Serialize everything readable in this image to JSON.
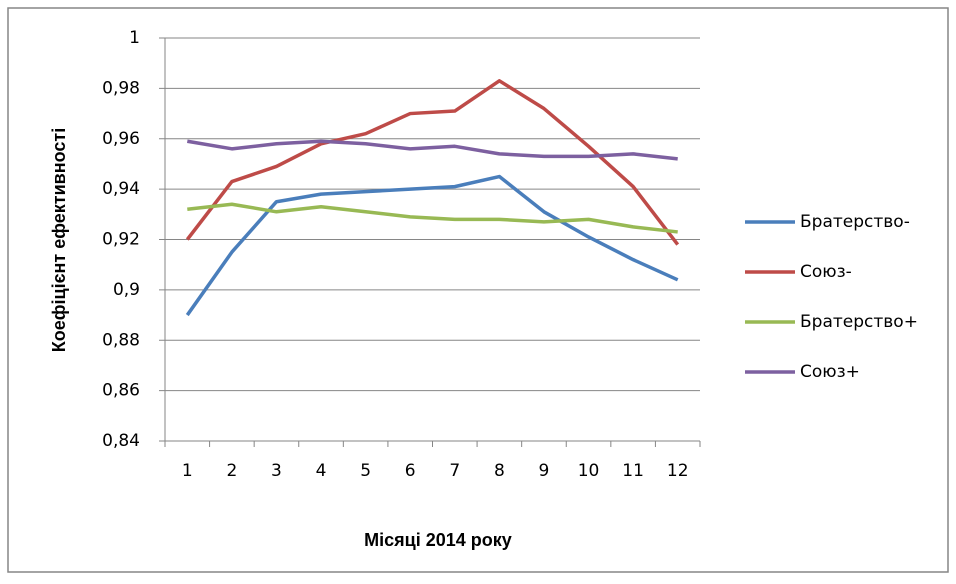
{
  "chart_data": {
    "type": "line",
    "x_label": "Місяці 2014 року",
    "y_label": "Коефіцієнт  ефективності",
    "categories": [
      "1",
      "2",
      "3",
      "4",
      "5",
      "6",
      "7",
      "8",
      "9",
      "10",
      "11",
      "12"
    ],
    "series": [
      {
        "name": "Братерство-",
        "color": "#4a7ebb",
        "values": [
          0.89,
          0.915,
          0.935,
          0.938,
          0.939,
          0.94,
          0.941,
          0.945,
          0.931,
          0.921,
          0.912,
          0.904
        ]
      },
      {
        "name": "Союз-",
        "color": "#be4b48",
        "values": [
          0.92,
          0.943,
          0.949,
          0.958,
          0.962,
          0.97,
          0.971,
          0.983,
          0.972,
          0.957,
          0.941,
          0.918
        ]
      },
      {
        "name": "Братерство+",
        "color": "#98b954",
        "values": [
          0.932,
          0.934,
          0.931,
          0.933,
          0.931,
          0.929,
          0.928,
          0.928,
          0.927,
          0.928,
          0.925,
          0.923
        ]
      },
      {
        "name": "Союз+",
        "color": "#7d60a0",
        "values": [
          0.959,
          0.956,
          0.958,
          0.959,
          0.958,
          0.956,
          0.957,
          0.954,
          0.953,
          0.953,
          0.954,
          0.952
        ]
      }
    ],
    "ylim": [
      0.84,
      1
    ],
    "yticks": [
      {
        "value": 0.84,
        "label": "0,84"
      },
      {
        "value": 0.86,
        "label": "0,86"
      },
      {
        "value": 0.88,
        "label": "0,88"
      },
      {
        "value": 0.9,
        "label": "0,9"
      },
      {
        "value": 0.92,
        "label": "0,92"
      },
      {
        "value": 0.94,
        "label": "0,94"
      },
      {
        "value": 0.96,
        "label": "0,96"
      },
      {
        "value": 0.98,
        "label": "0,98"
      },
      1
    ],
    "grid": true,
    "legend": "right"
  }
}
